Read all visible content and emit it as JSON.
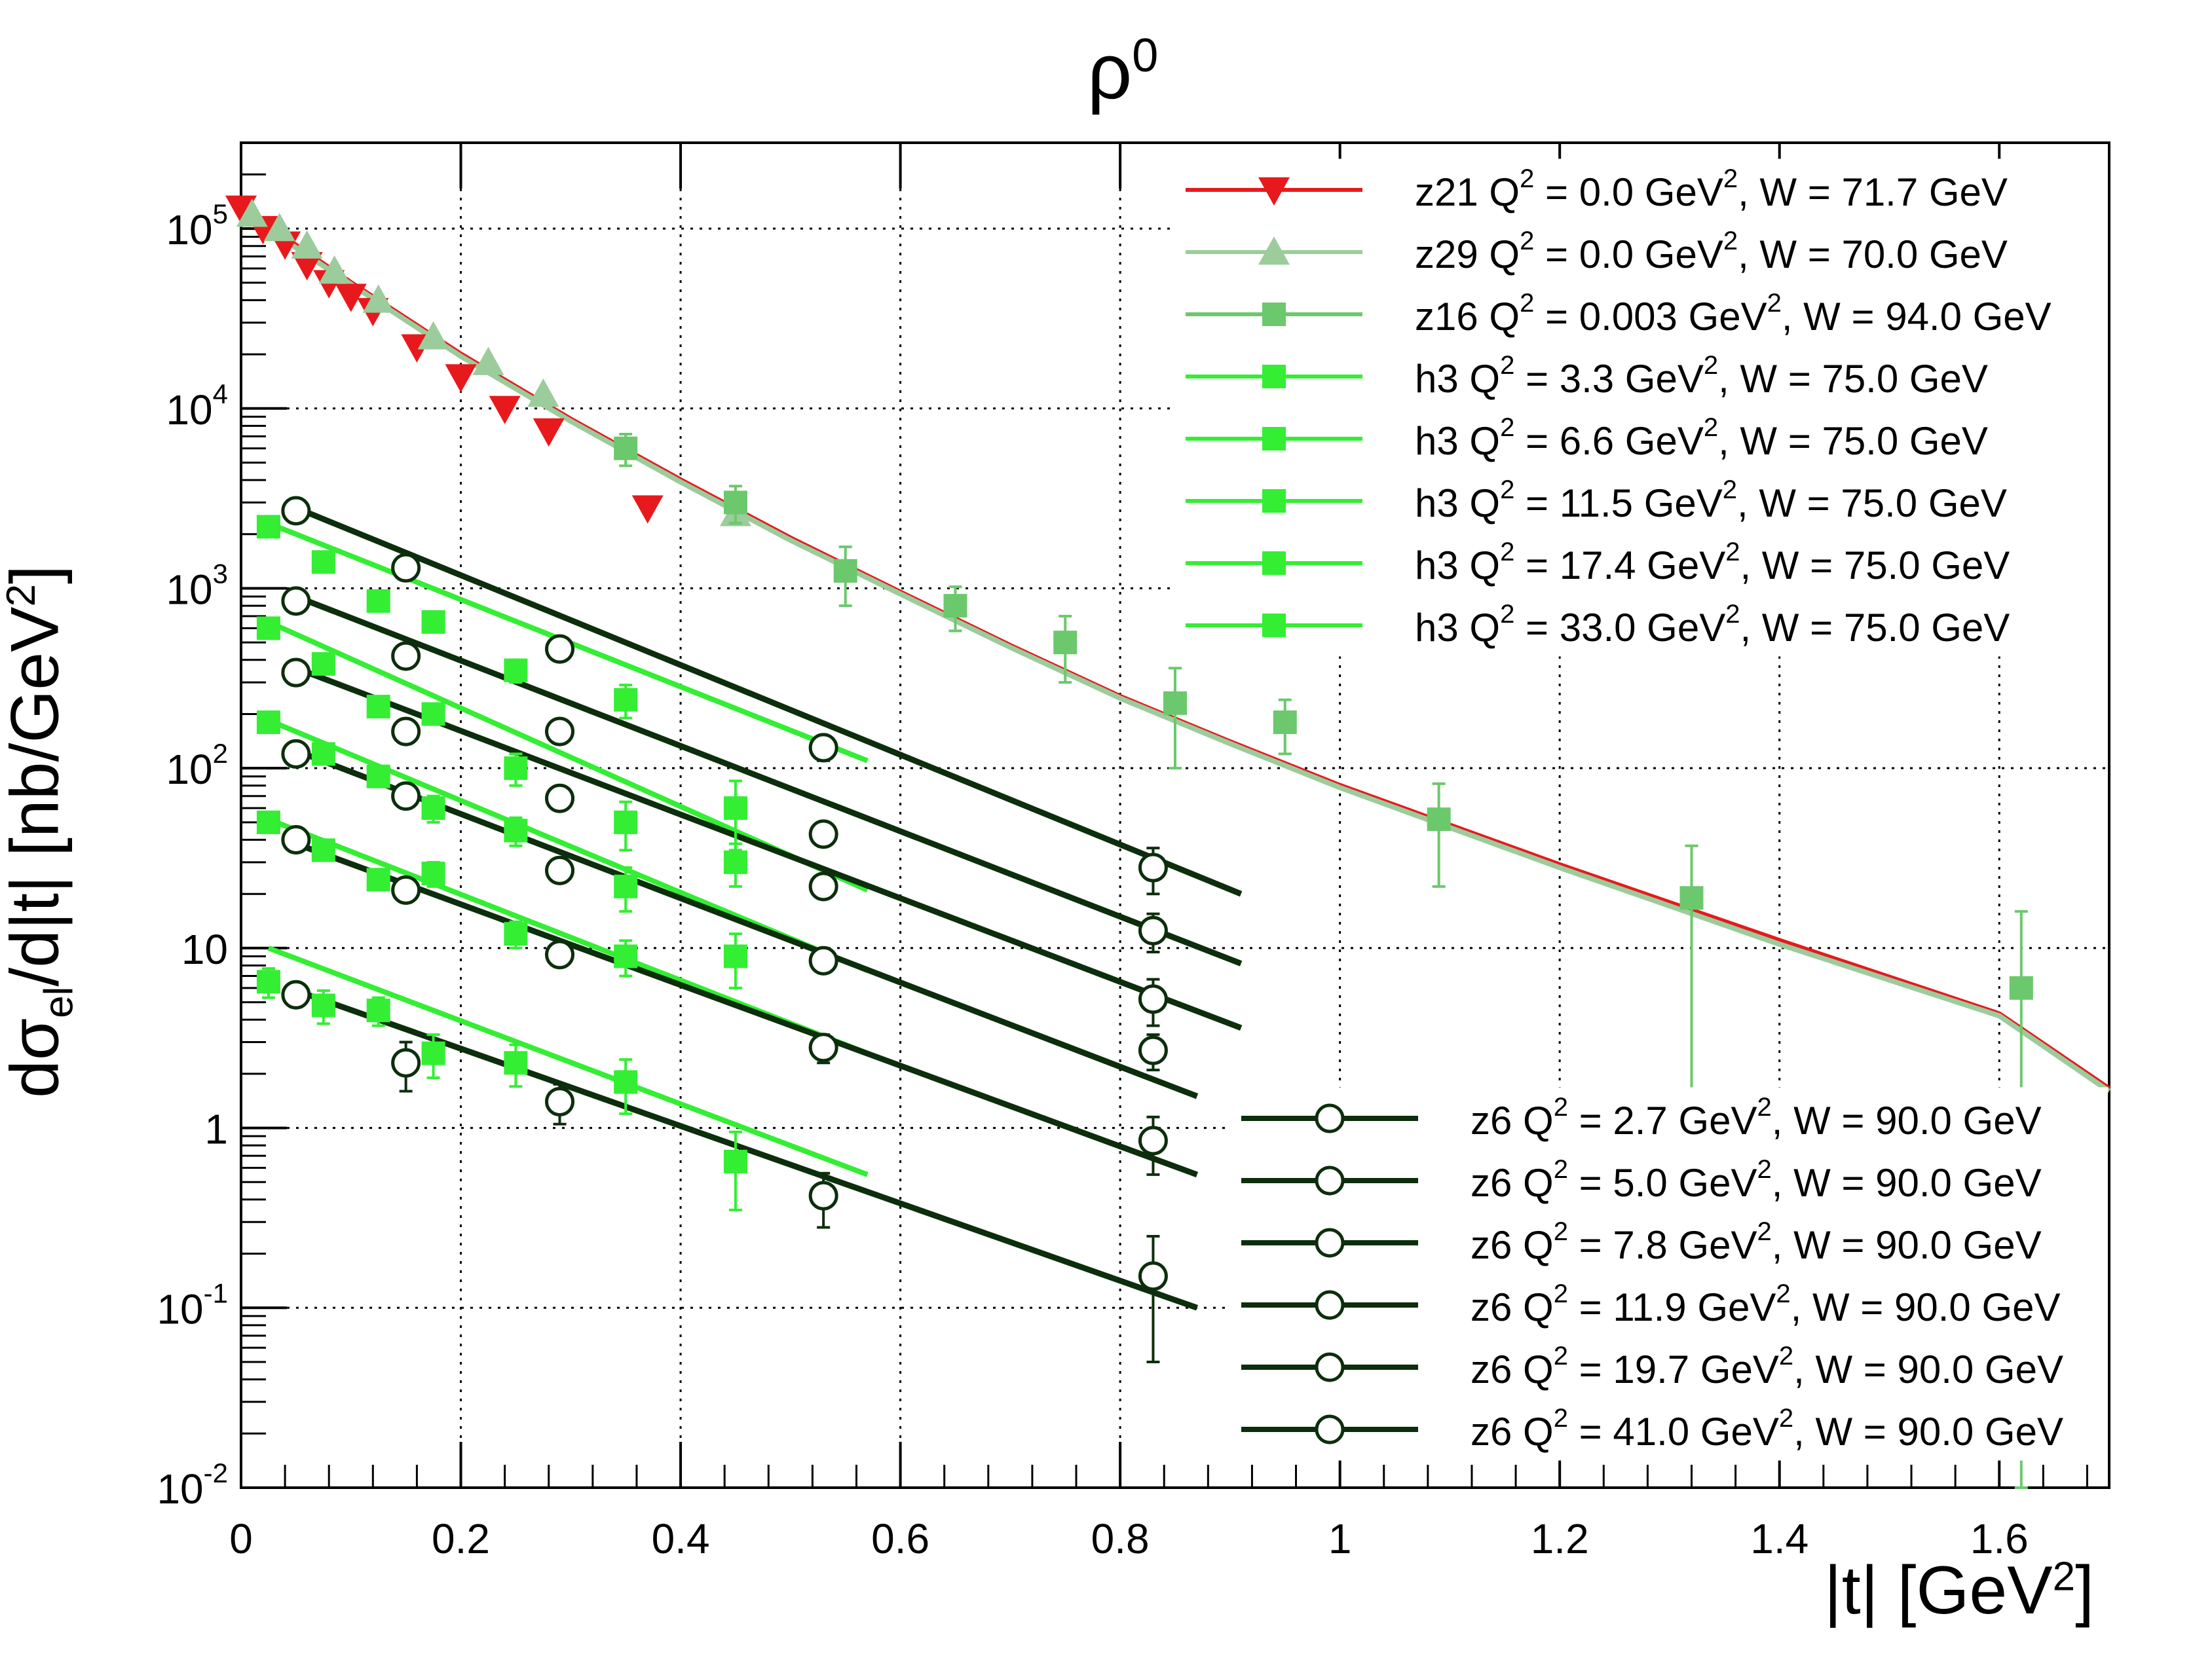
{
  "chart_data": {
    "type": "scatter",
    "title": "ρ",
    "title_superscript": "0",
    "xlabel": "|t| [GeV",
    "xlabel_superscript": "2",
    "xlabel_suffix": "]",
    "ylabel_parts": [
      "dσ",
      "el",
      "/d|t|  [nb/GeV",
      "2",
      "]"
    ],
    "xlim": [
      0,
      1.7
    ],
    "ylim": [
      0.01,
      300000
    ],
    "yscale": "log",
    "grid": true,
    "xticks": [
      0,
      0.2,
      0.4,
      0.6,
      0.8,
      1,
      1.2,
      1.4,
      1.6
    ],
    "xtick_labels": [
      "0",
      "0.2",
      "0.4",
      "0.6",
      "0.8",
      "1",
      "1.2",
      "1.4",
      "1.6"
    ],
    "yticks": [
      {
        "value": 100000,
        "base": "10",
        "exp": "5"
      },
      {
        "value": 10000,
        "base": "10",
        "exp": "4"
      },
      {
        "value": 1000,
        "base": "10",
        "exp": "3"
      },
      {
        "value": 100,
        "base": "10",
        "exp": "2"
      },
      {
        "value": 10,
        "base": "10",
        "exp": ""
      },
      {
        "value": 1,
        "base": "1",
        "exp": ""
      },
      {
        "value": 0.1,
        "base": "10",
        "exp": "-1"
      },
      {
        "value": 0.01,
        "base": "10",
        "exp": "-2"
      }
    ],
    "legend_top": {
      "placement": "top-right",
      "entries": [
        {
          "series": "z21",
          "q2": "0.0",
          "w": "71.7"
        },
        {
          "series": "z29",
          "q2": "0.0",
          "w": "70.0"
        },
        {
          "series": "z16",
          "q2": "0.003",
          "w": "94.0"
        },
        {
          "series": "h3a",
          "q2": "3.3",
          "w": "75.0"
        },
        {
          "series": "h3b",
          "q2": "6.6",
          "w": "75.0"
        },
        {
          "series": "h3c",
          "q2": "11.5",
          "w": "75.0"
        },
        {
          "series": "h3d",
          "q2": "17.4",
          "w": "75.0"
        },
        {
          "series": "h3e",
          "q2": "33.0",
          "w": "75.0"
        }
      ]
    },
    "legend_bottom": {
      "placement": "bottom-right",
      "entries": [
        {
          "series": "z6a",
          "q2": "2.7",
          "w": "90.0"
        },
        {
          "series": "z6b",
          "q2": "5.0",
          "w": "90.0"
        },
        {
          "series": "z6c",
          "q2": "7.8",
          "w": "90.0"
        },
        {
          "series": "z6d",
          "q2": "11.9",
          "w": "90.0"
        },
        {
          "series": "z6e",
          "q2": "19.7",
          "w": "90.0"
        },
        {
          "series": "z6f",
          "q2": "41.0",
          "w": "90.0"
        }
      ]
    },
    "series": [
      {
        "id": "z21",
        "name": "z21",
        "marker": "triangle-down",
        "color": "#e8191c",
        "x": [
          0.0,
          0.02,
          0.04,
          0.06,
          0.08,
          0.1,
          0.12,
          0.16,
          0.2,
          0.24,
          0.28,
          0.37
        ],
        "y": [
          130000,
          100000,
          82000,
          63000,
          50000,
          42000,
          35000,
          22000,
          15000,
          10000,
          7500,
          2800
        ],
        "fit": {
          "x": [
            0,
            0.1,
            0.2,
            0.3,
            0.4,
            0.5,
            0.6,
            0.7,
            0.8,
            0.9,
            1.0,
            1.2,
            1.4,
            1.6,
            1.7
          ],
          "y": [
            130000,
            50000,
            20000,
            8700,
            4000,
            1900,
            950,
            480,
            250,
            140,
            80,
            29,
            11,
            4.3,
            1.65
          ]
        }
      },
      {
        "id": "z29",
        "name": "z29",
        "marker": "triangle-up",
        "color": "#9ccc9c",
        "x": [
          0.01,
          0.035,
          0.06,
          0.085,
          0.125,
          0.175,
          0.225,
          0.275,
          0.45
        ],
        "y": [
          120000,
          100000,
          80000,
          58000,
          40000,
          25000,
          18000,
          12000,
          2600
        ],
        "fit": {
          "x": [
            0,
            0.1,
            0.2,
            0.3,
            0.4,
            0.5,
            0.6,
            0.7,
            0.8,
            0.9,
            1.0,
            1.2,
            1.4,
            1.6,
            1.7
          ],
          "y": [
            125000,
            49000,
            19500,
            8500,
            3900,
            1850,
            930,
            470,
            245,
            137,
            78,
            28,
            10.5,
            4.2,
            1.6
          ]
        }
      },
      {
        "id": "z16",
        "name": "z16",
        "marker": "square",
        "color": "#6cc86c",
        "x": [
          0.35,
          0.45,
          0.55,
          0.65,
          0.75,
          0.85,
          0.95,
          1.09,
          1.32,
          1.62
        ],
        "y": [
          6000,
          3000,
          1250,
          800,
          500,
          230,
          180,
          52,
          19,
          6
        ],
        "err": [
          1200,
          700,
          450,
          220,
          200,
          130,
          60,
          30,
          18,
          10
        ]
      },
      {
        "id": "h3a",
        "name": "h3",
        "marker": "square",
        "color": "#33ee33",
        "x": [
          0.025,
          0.075,
          0.125,
          0.175,
          0.25,
          0.35
        ],
        "y": [
          2200,
          1400,
          850,
          650,
          350,
          240
        ],
        "err": [
          0,
          0,
          0,
          0,
          50,
          50
        ],
        "fit": {
          "x": [
            0.025,
            0.57
          ],
          "y": [
            2300,
            110
          ]
        }
      },
      {
        "id": "h3b",
        "name": "h3",
        "marker": "square",
        "color": "#33ee33",
        "x": [
          0.025,
          0.075,
          0.125,
          0.175,
          0.25,
          0.35,
          0.45
        ],
        "y": [
          600,
          380,
          220,
          200,
          100,
          50,
          60
        ],
        "err": [
          0,
          0,
          0,
          0,
          20,
          15,
          25
        ],
        "fit": {
          "x": [
            0.025,
            0.57
          ],
          "y": [
            650,
            21
          ]
        }
      },
      {
        "id": "h3c",
        "name": "h3",
        "marker": "square",
        "color": "#33ee33",
        "x": [
          0.025,
          0.075,
          0.125,
          0.175,
          0.25,
          0.35,
          0.45
        ],
        "y": [
          180,
          120,
          90,
          60,
          45,
          22,
          30
        ],
        "err": [
          0,
          0,
          0,
          10,
          8,
          6,
          8
        ],
        "fit": {
          "x": [
            0.025,
            0.57
          ],
          "y": [
            185,
            7.5
          ]
        }
      },
      {
        "id": "h3d",
        "name": "h3",
        "marker": "square",
        "color": "#33ee33",
        "x": [
          0.025,
          0.075,
          0.125,
          0.175,
          0.25,
          0.35,
          0.45
        ],
        "y": [
          50,
          35,
          24,
          26,
          12,
          9,
          9
        ],
        "err": [
          0,
          0,
          0,
          4,
          2,
          2,
          3
        ],
        "fit": {
          "x": [
            0.025,
            0.57
          ],
          "y": [
            52,
            2.6
          ]
        }
      },
      {
        "id": "h3e",
        "name": "h3",
        "marker": "square",
        "color": "#33ee33",
        "x": [
          0.025,
          0.075,
          0.125,
          0.175,
          0.25,
          0.35,
          0.45
        ],
        "y": [
          6.5,
          4.8,
          4.5,
          2.6,
          2.3,
          1.8,
          0.65
        ],
        "err": [
          1.2,
          1.0,
          0.8,
          0.7,
          0.6,
          0.6,
          0.3
        ],
        "fit": {
          "x": [
            0.025,
            0.57
          ],
          "y": [
            10,
            0.55
          ]
        }
      },
      {
        "id": "z6a",
        "name": "z6",
        "marker": "circle-open",
        "color": "#0c2e0c",
        "x": [
          0.05,
          0.15,
          0.29,
          0.53,
          0.83
        ],
        "y": [
          2700,
          1300,
          460,
          130,
          28
        ],
        "err": [
          0,
          0,
          60,
          20,
          8
        ],
        "fit": {
          "x": [
            0.05,
            0.91
          ],
          "y": [
            2800,
            20
          ]
        }
      },
      {
        "id": "z6b",
        "name": "z6",
        "marker": "circle-open",
        "color": "#0c2e0c",
        "x": [
          0.05,
          0.15,
          0.29,
          0.53,
          0.83
        ],
        "y": [
          850,
          420,
          160,
          43,
          12.5
        ],
        "err": [
          0,
          0,
          20,
          6,
          3
        ],
        "fit": {
          "x": [
            0.05,
            0.91
          ],
          "y": [
            900,
            8.2
          ]
        }
      },
      {
        "id": "z6c",
        "name": "z6",
        "marker": "circle-open",
        "color": "#0c2e0c",
        "x": [
          0.05,
          0.15,
          0.29,
          0.53,
          0.83
        ],
        "y": [
          340,
          160,
          68,
          22,
          5.2
        ],
        "err": [
          0,
          0,
          8,
          3,
          1.5
        ],
        "fit": {
          "x": [
            0.05,
            0.91
          ],
          "y": [
            360,
            3.6
          ]
        }
      },
      {
        "id": "z6d",
        "name": "z6",
        "marker": "circle-open",
        "color": "#0c2e0c",
        "x": [
          0.05,
          0.15,
          0.29,
          0.53,
          0.83
        ],
        "y": [
          120,
          70,
          27,
          8.5,
          2.7
        ],
        "err": [
          0,
          0,
          3,
          1.2,
          0.6
        ],
        "fit": {
          "x": [
            0.05,
            0.87
          ],
          "y": [
            125,
            1.5
          ]
        }
      },
      {
        "id": "z6e",
        "name": "z6",
        "marker": "circle-open",
        "color": "#0c2e0c",
        "x": [
          0.05,
          0.15,
          0.29,
          0.53,
          0.83
        ],
        "y": [
          40,
          21,
          9.2,
          2.8,
          0.85
        ],
        "err": [
          0,
          2,
          1.2,
          0.5,
          0.3
        ],
        "fit": {
          "x": [
            0.05,
            0.87
          ],
          "y": [
            38,
            0.55
          ]
        }
      },
      {
        "id": "z6f",
        "name": "z6",
        "marker": "circle-open",
        "color": "#0c2e0c",
        "x": [
          0.05,
          0.15,
          0.29,
          0.53,
          0.83
        ],
        "y": [
          5.5,
          2.3,
          1.4,
          0.42,
          0.15
        ],
        "err": [
          0.8,
          0.7,
          0.35,
          0.14,
          0.1
        ],
        "fit": {
          "x": [
            0.05,
            0.87
          ],
          "y": [
            5.8,
            0.1
          ]
        }
      }
    ]
  }
}
